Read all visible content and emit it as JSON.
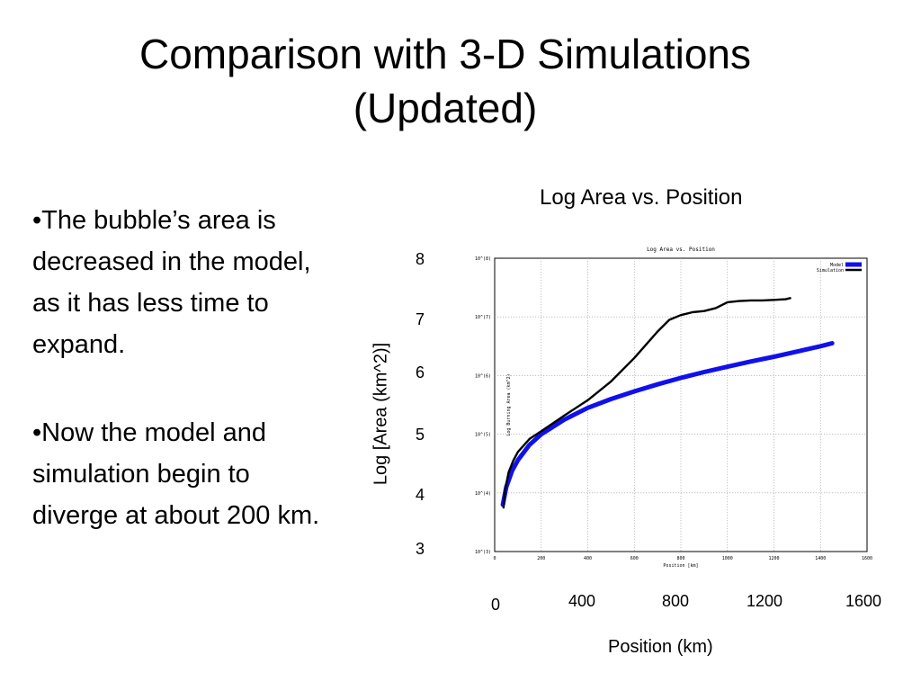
{
  "slide": {
    "title_line1": "Comparison with 3-D Simulations",
    "title_line2": "(Updated)",
    "bullets": [
      "•The bubble’s area is decreased in the model, as it  has less time to expand.",
      "•Now the model and simulation begin to diverge at about 200 km."
    ],
    "chart_caption": "Log Area vs. Position",
    "y_axis_label": "Log [Area (km^2)]",
    "x_axis_label": "Position (km)",
    "y_ticks": [
      "8",
      "7",
      "6",
      "5",
      "4",
      "3"
    ],
    "x_ticks": [
      "0",
      "400",
      "800",
      "1200",
      "1600"
    ]
  },
  "chart_data": {
    "type": "line",
    "title": "Log Area vs. Position",
    "xlabel": "Position [km]",
    "ylabel": "Log Burning Area (km^2)",
    "xlim": [
      0,
      1600
    ],
    "ylim": [
      3,
      8
    ],
    "grid": true,
    "legend_position": "top-right",
    "x_ticks": [
      "0",
      "200",
      "400",
      "600",
      "800",
      "1000",
      "1200",
      "1400",
      "1600"
    ],
    "y_ticks": [
      "10^(3)",
      "10^(4)",
      "10^(5)",
      "10^(6)",
      "10^(7)",
      "10^(8)"
    ],
    "series": [
      {
        "name": "Model",
        "color": "#1010ee",
        "x": [
          35,
          50,
          75,
          100,
          150,
          200,
          300,
          400,
          500,
          600,
          700,
          800,
          900,
          1000,
          1100,
          1200,
          1300,
          1400,
          1450
        ],
        "y": [
          3.8,
          4.1,
          4.38,
          4.56,
          4.82,
          5.0,
          5.25,
          5.45,
          5.6,
          5.73,
          5.85,
          5.96,
          6.06,
          6.15,
          6.24,
          6.32,
          6.41,
          6.5,
          6.55
        ]
      },
      {
        "name": "Simulation",
        "color": "#000000",
        "x": [
          38,
          45,
          60,
          80,
          100,
          150,
          200,
          300,
          400,
          500,
          600,
          700,
          750,
          800,
          850,
          900,
          950,
          1000,
          1050,
          1100,
          1150,
          1200,
          1250,
          1270
        ],
        "y": [
          3.75,
          4.05,
          4.35,
          4.55,
          4.7,
          4.92,
          5.05,
          5.32,
          5.58,
          5.9,
          6.3,
          6.75,
          6.95,
          7.03,
          7.08,
          7.1,
          7.15,
          7.25,
          7.27,
          7.28,
          7.28,
          7.29,
          7.3,
          7.32
        ]
      }
    ]
  }
}
